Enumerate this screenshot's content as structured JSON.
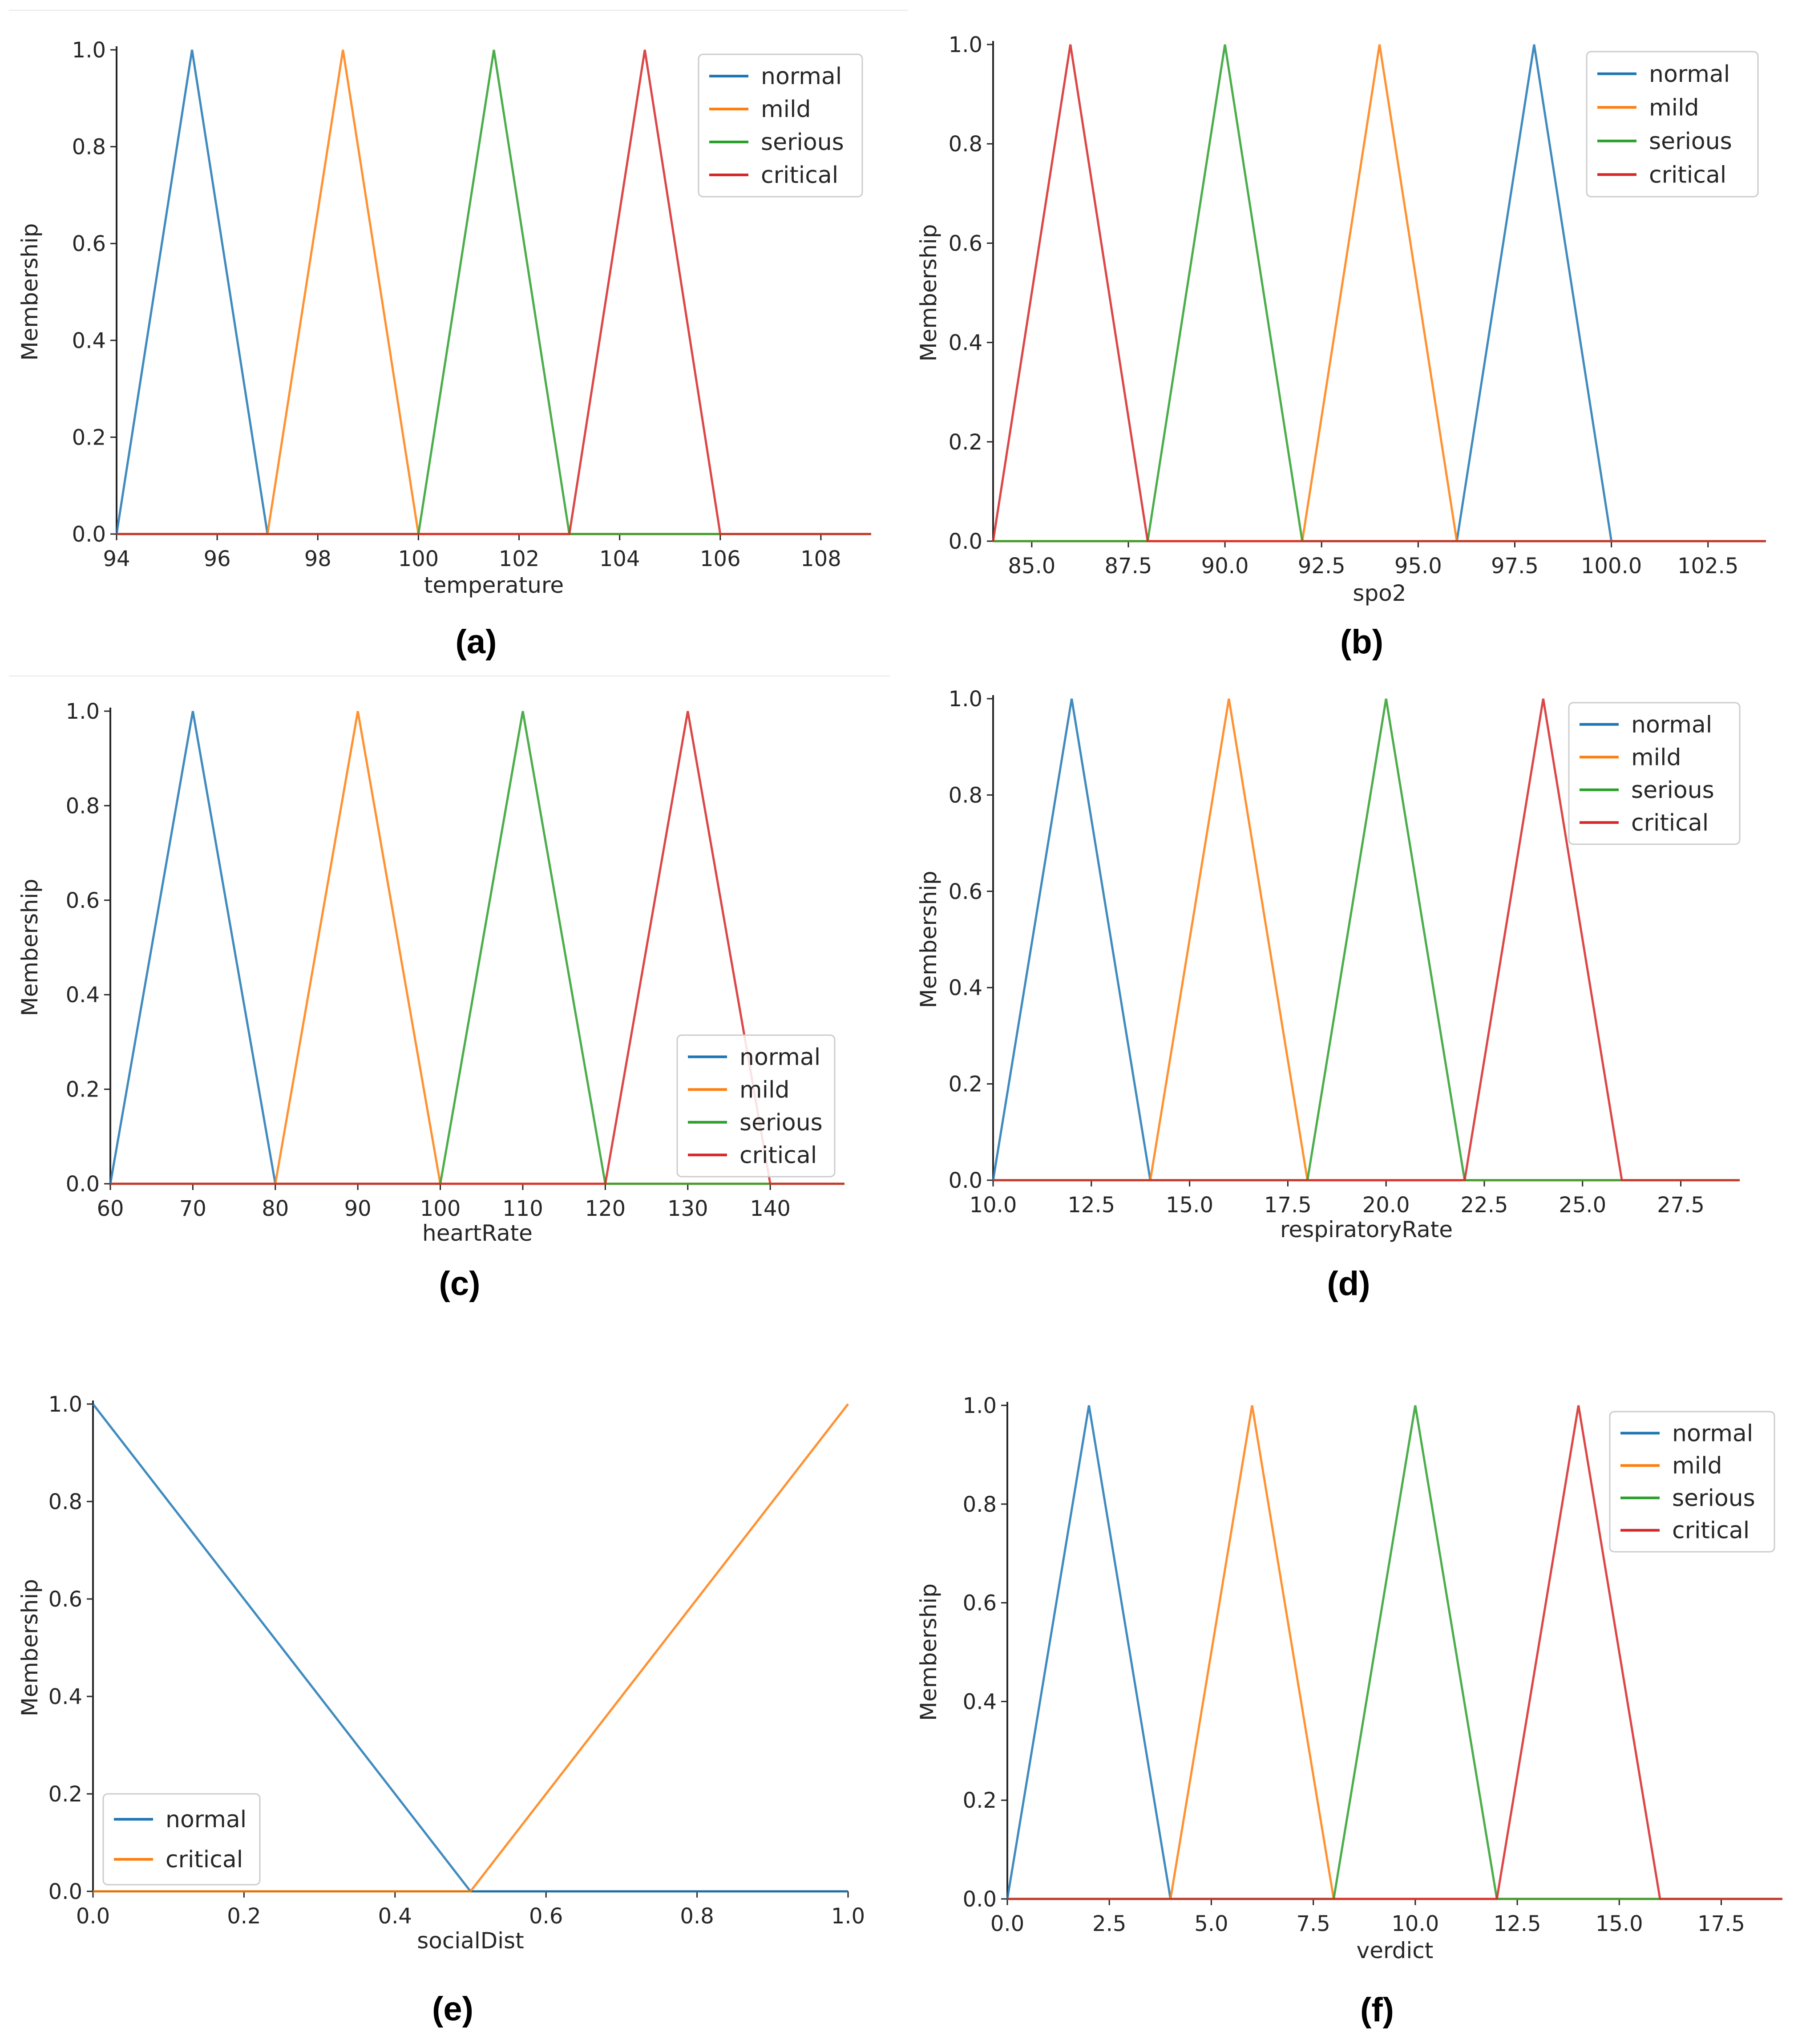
{
  "chart_data": [
    {
      "type": "line",
      "panel": "(a)",
      "xlabel": "temperature",
      "ylabel": "Membership",
      "xlim": [
        94,
        109
      ],
      "ylim": [
        0,
        1.0
      ],
      "xticks": [
        94,
        96,
        98,
        100,
        102,
        104,
        106,
        108
      ],
      "xtick_labels": [
        "94",
        "96",
        "98",
        "100",
        "102",
        "104",
        "106",
        "108"
      ],
      "yticks": [
        0,
        0.2,
        0.4,
        0.6,
        0.8,
        1.0
      ],
      "ytick_labels": [
        "0.0",
        "0.2",
        "0.4",
        "0.6",
        "0.8",
        "1.0"
      ],
      "legend_position": "top-right",
      "series": [
        {
          "name": "normal",
          "color": "#1f77b4",
          "points": [
            [
              94,
              0
            ],
            [
              95.5,
              1
            ],
            [
              97,
              0
            ],
            [
              109,
              0
            ]
          ]
        },
        {
          "name": "mild",
          "color": "#ff7f0e",
          "points": [
            [
              94,
              0
            ],
            [
              97,
              0
            ],
            [
              98.5,
              1
            ],
            [
              100,
              0
            ],
            [
              109,
              0
            ]
          ]
        },
        {
          "name": "serious",
          "color": "#2ca02c",
          "points": [
            [
              94,
              0
            ],
            [
              100,
              0
            ],
            [
              101.5,
              1
            ],
            [
              103,
              0
            ],
            [
              109,
              0
            ]
          ]
        },
        {
          "name": "critical",
          "color": "#d62728",
          "points": [
            [
              94,
              0
            ],
            [
              103,
              0
            ],
            [
              104.5,
              1
            ],
            [
              106,
              0
            ],
            [
              109,
              0
            ]
          ]
        }
      ]
    },
    {
      "type": "line",
      "panel": "(b)",
      "xlabel": "spo2",
      "ylabel": "Membership",
      "xlim": [
        84,
        104
      ],
      "ylim": [
        0,
        1.0
      ],
      "xticks": [
        85,
        87.5,
        90,
        92.5,
        95,
        97.5,
        100,
        102.5
      ],
      "xtick_labels": [
        "85.0",
        "87.5",
        "90.0",
        "92.5",
        "95.0",
        "97.5",
        "100.0",
        "102.5"
      ],
      "yticks": [
        0,
        0.2,
        0.4,
        0.6,
        0.8,
        1.0
      ],
      "ytick_labels": [
        "0.0",
        "0.2",
        "0.4",
        "0.6",
        "0.8",
        "1.0"
      ],
      "legend_position": "top-right",
      "series": [
        {
          "name": "normal",
          "color": "#1f77b4",
          "points": [
            [
              84,
              0
            ],
            [
              96,
              0
            ],
            [
              98,
              1
            ],
            [
              100,
              0
            ],
            [
              104,
              0
            ]
          ]
        },
        {
          "name": "mild",
          "color": "#ff7f0e",
          "points": [
            [
              84,
              0
            ],
            [
              92,
              0
            ],
            [
              94,
              1
            ],
            [
              96,
              0
            ],
            [
              104,
              0
            ]
          ]
        },
        {
          "name": "serious",
          "color": "#2ca02c",
          "points": [
            [
              84,
              0
            ],
            [
              88,
              0
            ],
            [
              90,
              1
            ],
            [
              92,
              0
            ],
            [
              104,
              0
            ]
          ]
        },
        {
          "name": "critical",
          "color": "#d62728",
          "points": [
            [
              84,
              0
            ],
            [
              86,
              1
            ],
            [
              88,
              0
            ],
            [
              104,
              0
            ]
          ]
        }
      ]
    },
    {
      "type": "line",
      "panel": "(c)",
      "xlabel": "heartRate",
      "ylabel": "Membership",
      "xlim": [
        60,
        149
      ],
      "ylim": [
        0,
        1.0
      ],
      "xticks": [
        60,
        70,
        80,
        90,
        100,
        110,
        120,
        130,
        140
      ],
      "xtick_labels": [
        "60",
        "70",
        "80",
        "90",
        "100",
        "110",
        "120",
        "130",
        "140"
      ],
      "yticks": [
        0,
        0.2,
        0.4,
        0.6,
        0.8,
        1.0
      ],
      "ytick_labels": [
        "0.0",
        "0.2",
        "0.4",
        "0.6",
        "0.8",
        "1.0"
      ],
      "legend_position": "lower-right",
      "series": [
        {
          "name": "normal",
          "color": "#1f77b4",
          "points": [
            [
              60,
              0
            ],
            [
              70,
              1
            ],
            [
              80,
              0
            ],
            [
              149,
              0
            ]
          ]
        },
        {
          "name": "mild",
          "color": "#ff7f0e",
          "points": [
            [
              60,
              0
            ],
            [
              80,
              0
            ],
            [
              90,
              1
            ],
            [
              100,
              0
            ],
            [
              149,
              0
            ]
          ]
        },
        {
          "name": "serious",
          "color": "#2ca02c",
          "points": [
            [
              60,
              0
            ],
            [
              100,
              0
            ],
            [
              110,
              1
            ],
            [
              120,
              0
            ],
            [
              149,
              0
            ]
          ]
        },
        {
          "name": "critical",
          "color": "#d62728",
          "points": [
            [
              60,
              0
            ],
            [
              120,
              0
            ],
            [
              130,
              1
            ],
            [
              140,
              0
            ],
            [
              149,
              0
            ]
          ]
        }
      ]
    },
    {
      "type": "line",
      "panel": "(d)",
      "xlabel": "respiratoryRate",
      "ylabel": "Membership",
      "xlim": [
        10,
        29
      ],
      "ylim": [
        0,
        1.0
      ],
      "xticks": [
        10,
        12.5,
        15,
        17.5,
        20,
        22.5,
        25,
        27.5
      ],
      "xtick_labels": [
        "10.0",
        "12.5",
        "15.0",
        "17.5",
        "20.0",
        "22.5",
        "25.0",
        "27.5"
      ],
      "yticks": [
        0,
        0.2,
        0.4,
        0.6,
        0.8,
        1.0
      ],
      "ytick_labels": [
        "0.0",
        "0.2",
        "0.4",
        "0.6",
        "0.8",
        "1.0"
      ],
      "legend_position": "top-right",
      "series": [
        {
          "name": "normal",
          "color": "#1f77b4",
          "points": [
            [
              10,
              0
            ],
            [
              12,
              1
            ],
            [
              14,
              0
            ],
            [
              29,
              0
            ]
          ]
        },
        {
          "name": "mild",
          "color": "#ff7f0e",
          "points": [
            [
              10,
              0
            ],
            [
              14,
              0
            ],
            [
              16,
              1
            ],
            [
              18,
              0
            ],
            [
              29,
              0
            ]
          ]
        },
        {
          "name": "serious",
          "color": "#2ca02c",
          "points": [
            [
              10,
              0
            ],
            [
              18,
              0
            ],
            [
              20,
              1
            ],
            [
              22,
              0
            ],
            [
              29,
              0
            ]
          ]
        },
        {
          "name": "critical",
          "color": "#d62728",
          "points": [
            [
              10,
              0
            ],
            [
              22,
              0
            ],
            [
              24,
              1
            ],
            [
              26,
              0
            ],
            [
              29,
              0
            ]
          ]
        }
      ]
    },
    {
      "type": "line",
      "panel": "(e)",
      "xlabel": "socialDist",
      "ylabel": "Membership",
      "xlim": [
        0,
        1.0
      ],
      "ylim": [
        0,
        1.0
      ],
      "xticks": [
        0,
        0.2,
        0.4,
        0.6,
        0.8,
        1.0
      ],
      "xtick_labels": [
        "0.0",
        "0.2",
        "0.4",
        "0.6",
        "0.8",
        "1.0"
      ],
      "yticks": [
        0,
        0.2,
        0.4,
        0.6,
        0.8,
        1.0
      ],
      "ytick_labels": [
        "0.0",
        "0.2",
        "0.4",
        "0.6",
        "0.8",
        "1.0"
      ],
      "legend_position": "lower-left",
      "series": [
        {
          "name": "normal",
          "color": "#1f77b4",
          "points": [
            [
              0,
              1
            ],
            [
              0.5,
              0
            ],
            [
              1.0,
              0
            ]
          ]
        },
        {
          "name": "critical",
          "color": "#ff7f0e",
          "points": [
            [
              0,
              0
            ],
            [
              0.5,
              0
            ],
            [
              1.0,
              1
            ]
          ]
        }
      ]
    },
    {
      "type": "line",
      "panel": "(f)",
      "xlabel": "verdict",
      "ylabel": "Membership",
      "xlim": [
        0,
        19
      ],
      "ylim": [
        0,
        1.0
      ],
      "xticks": [
        0,
        2.5,
        5,
        7.5,
        10,
        12.5,
        15,
        17.5
      ],
      "xtick_labels": [
        "0.0",
        "2.5",
        "5.0",
        "7.5",
        "10.0",
        "12.5",
        "15.0",
        "17.5"
      ],
      "yticks": [
        0,
        0.2,
        0.4,
        0.6,
        0.8,
        1.0
      ],
      "ytick_labels": [
        "0.0",
        "0.2",
        "0.4",
        "0.6",
        "0.8",
        "1.0"
      ],
      "legend_position": "top-right",
      "series": [
        {
          "name": "normal",
          "color": "#1f77b4",
          "points": [
            [
              0,
              0
            ],
            [
              2,
              1
            ],
            [
              4,
              0
            ],
            [
              19,
              0
            ]
          ]
        },
        {
          "name": "mild",
          "color": "#ff7f0e",
          "points": [
            [
              0,
              0
            ],
            [
              4,
              0
            ],
            [
              6,
              1
            ],
            [
              8,
              0
            ],
            [
              19,
              0
            ]
          ]
        },
        {
          "name": "serious",
          "color": "#2ca02c",
          "points": [
            [
              0,
              0
            ],
            [
              8,
              0
            ],
            [
              10,
              1
            ],
            [
              12,
              0
            ],
            [
              19,
              0
            ]
          ]
        },
        {
          "name": "critical",
          "color": "#d62728",
          "points": [
            [
              0,
              0
            ],
            [
              12,
              0
            ],
            [
              14,
              1
            ],
            [
              16,
              0
            ],
            [
              19,
              0
            ]
          ]
        }
      ]
    }
  ]
}
